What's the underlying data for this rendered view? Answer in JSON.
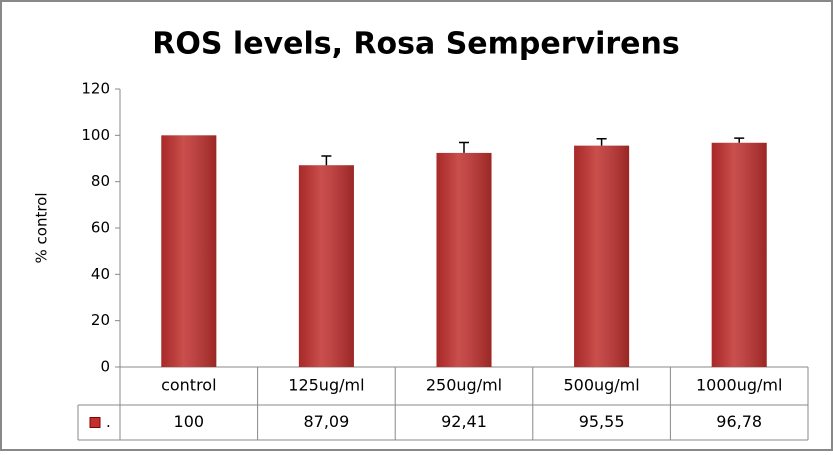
{
  "chart_data": {
    "type": "bar",
    "title": "ROS levels, Rosa Sempervirens",
    "y_label": "% control",
    "categories": [
      "control",
      "125ug/ml",
      "250ug/ml",
      "500ug/ml",
      "1000ug/ml"
    ],
    "series": [
      {
        "name": ".",
        "color": "#c0302e",
        "values": [
          100,
          87.09,
          92.41,
          95.55,
          96.78
        ],
        "value_labels": [
          "100",
          "87,09",
          "92,41",
          "95,55",
          "96,78"
        ],
        "errors": [
          null,
          4,
          4.5,
          3,
          2
        ]
      }
    ],
    "ylim": [
      0,
      120
    ],
    "yticks": [
      0,
      20,
      40,
      60,
      80,
      100,
      120
    ],
    "grid": false
  }
}
